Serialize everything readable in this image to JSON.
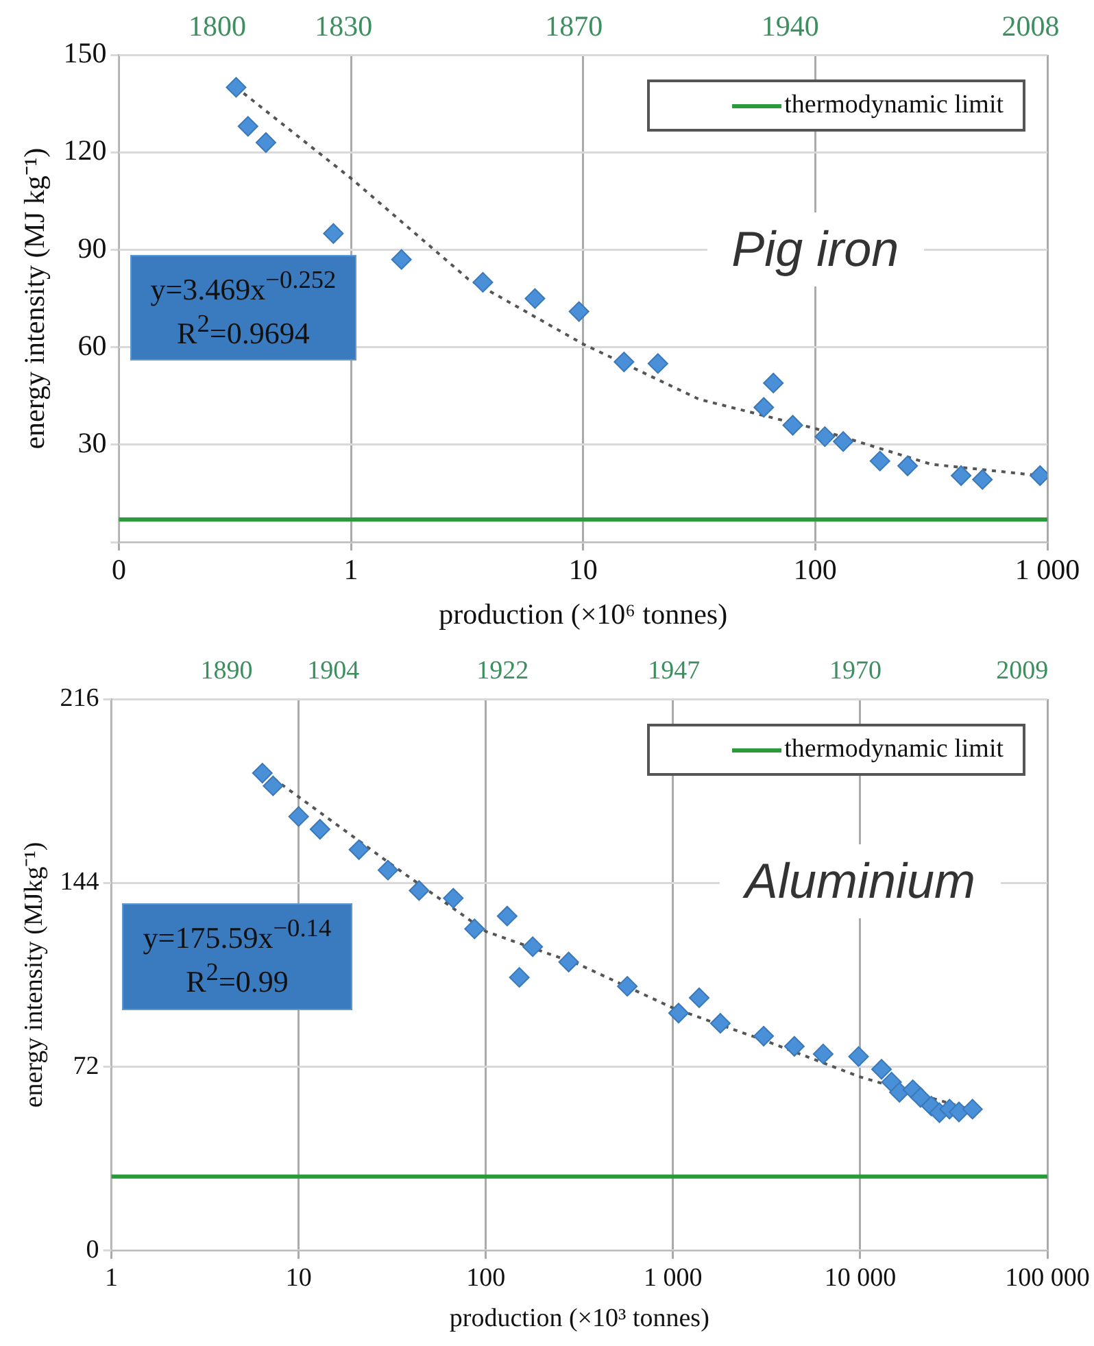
{
  "chart_data": [
    {
      "type": "scatter",
      "title": "Pig iron",
      "xlabel": "production (×10⁶ tonnes)",
      "ylabel": "energy intensity (MJ kg⁻¹)",
      "log": "x",
      "xlim": [
        0.1,
        1000
      ],
      "xticks": [
        {
          "value": 0.1,
          "label": "0"
        },
        1,
        10,
        100,
        {
          "value": 1000,
          "label": "1 000"
        }
      ],
      "ylim": [
        0,
        150
      ],
      "yticks": [
        {
          "value": 0,
          "label": null
        },
        30,
        60,
        90,
        120,
        150
      ],
      "grid": true,
      "legend": "top right",
      "marker": "diamond",
      "series": [
        {
          "color": "#4a90d9",
          "x": [
            0.32,
            0.36,
            0.43,
            0.84,
            1.65,
            3.7,
            6.2,
            9.6,
            15,
            21,
            66,
            60,
            80,
            110,
            132,
            190,
            250,
            425,
            525,
            930
          ],
          "values": [
            140,
            128,
            123,
            95,
            87,
            80,
            75,
            71,
            55.5,
            55,
            49,
            41.5,
            36,
            32.5,
            31,
            25,
            23.5,
            20.5,
            19.3,
            20.5
          ]
        },
        {
          "type": "line",
          "color": "#555555",
          "line_style": "dotted",
          "marker": "none",
          "x": [
            0.32,
            1,
            3.2,
            10,
            31.6,
            100,
            316,
            930
          ],
          "values": [
            140,
            112,
            81,
            61,
            44,
            35,
            24,
            20.5
          ]
        }
      ],
      "ref_lines": [
        {
          "axis": "y",
          "value": 7,
          "label": "thermodynamic limit",
          "color": "#2a9a3a"
        }
      ],
      "annotations": [
        "y=3.469x$^{−0.252}$",
        "R$^{2}$=0.9694",
        "1800",
        "1830",
        "1870",
        "1940",
        "2008"
      ]
    },
    {
      "type": "scatter",
      "title": "Aluminium",
      "xlabel": "production (×10³ tonnes)",
      "ylabel": "energy intensity (MJkg⁻¹)",
      "log": "x",
      "xlim": [
        1,
        100000
      ],
      "xticks": [
        1,
        10,
        100,
        {
          "value": 1000,
          "label": "1 000"
        },
        {
          "value": 10000,
          "label": "10 000"
        },
        {
          "value": 100000,
          "label": "100 000"
        }
      ],
      "ylim": [
        0,
        216
      ],
      "yticks": [
        0,
        72,
        144,
        216
      ],
      "grid": true,
      "legend": "top right",
      "marker": "diamond",
      "series": [
        {
          "color": "#4a90d9",
          "x": [
            6.4,
            7.3,
            10,
            13,
            21,
            30,
            44,
            67,
            87,
            130,
            178,
            151,
            277,
            570,
            1070,
            1380,
            1790,
            3050,
            4450,
            6340,
            9800,
            13000,
            14700,
            16200,
            19100,
            21000,
            24000,
            26500,
            30000,
            33700,
            39800
          ],
          "values": [
            187,
            182,
            170,
            165,
            157,
            149,
            141,
            138,
            126,
            131,
            119,
            107,
            113,
            103.5,
            93,
            99,
            89,
            84,
            80,
            77,
            76,
            71,
            66,
            62,
            63,
            60,
            56.6,
            54,
            55.4,
            54.3,
            55.4
          ]
        },
        {
          "type": "line",
          "color": "#555555",
          "line_style": "dotted",
          "marker": "none",
          "x": [
            6.7,
            31.6,
            100,
            316,
            1000,
            3162,
            10000,
            40000
          ],
          "values": [
            187,
            151,
            125,
            112,
            95,
            82,
            68,
            55
          ]
        }
      ],
      "ref_lines": [
        {
          "axis": "y",
          "value": 29,
          "label": "thermodynamic limit",
          "color": "#2a9a3a"
        }
      ],
      "annotations": [
        "y=175.59x$^{−0.14}$",
        "R$^{2}$=0.99",
        "1890",
        "1904",
        "1922",
        "1947",
        "1970",
        "2009"
      ]
    }
  ]
}
